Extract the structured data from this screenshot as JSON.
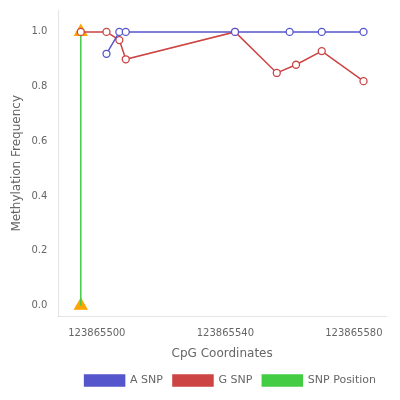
{
  "chart_data": {
    "type": "line",
    "xlabel": "CpG Coordinates",
    "ylabel": "Methylation Frequency",
    "series": [
      {
        "name": "A SNP",
        "color": "#5555cc",
        "marker": "open_circle",
        "line_style": "solid",
        "x": [
          123865503,
          123865507,
          123865509,
          123865543,
          123865560,
          123865570,
          123865583
        ],
        "values": [
          0.92,
          1.0,
          1.0,
          1.0,
          1.0,
          1.0,
          1.0
        ]
      },
      {
        "name": "G SNP",
        "color": "#cc4444",
        "marker": "open_circle",
        "line_style": "solid",
        "x": [
          123865495,
          123865503,
          123865507,
          123865509,
          123865543,
          123865556,
          123865562,
          123865570,
          123865583
        ],
        "values": [
          1.0,
          1.0,
          0.97,
          0.9,
          1.0,
          0.85,
          0.88,
          0.93,
          0.82
        ]
      },
      {
        "name": "SNP Position",
        "color": "#44cc44",
        "marker": "none",
        "line_style": "solid",
        "x": [
          123865495,
          123865495
        ],
        "values": [
          0.0,
          1.0
        ]
      },
      {
        "color": "#FFA500",
        "marker": "triangle",
        "line_style": "none",
        "x": [
          123865495,
          123865495
        ],
        "values": [
          0.0,
          1.0
        ]
      }
    ],
    "xlim": [
      123865488,
      123865590
    ],
    "ylim": [
      -0.04,
      1.08
    ],
    "xticks": [
      123865500,
      123865540,
      123865580
    ],
    "yticks": [
      {
        "value": 0.0,
        "label": "0.0"
      },
      {
        "value": 0.2,
        "label": "0.2"
      },
      {
        "value": 0.4,
        "label": "0.4"
      },
      {
        "value": 0.6,
        "label": "0.6"
      },
      {
        "value": 0.8,
        "label": "0.8"
      },
      {
        "value": 1.0,
        "label": "1.0"
      }
    ],
    "grid": false,
    "legend": "lower right"
  }
}
